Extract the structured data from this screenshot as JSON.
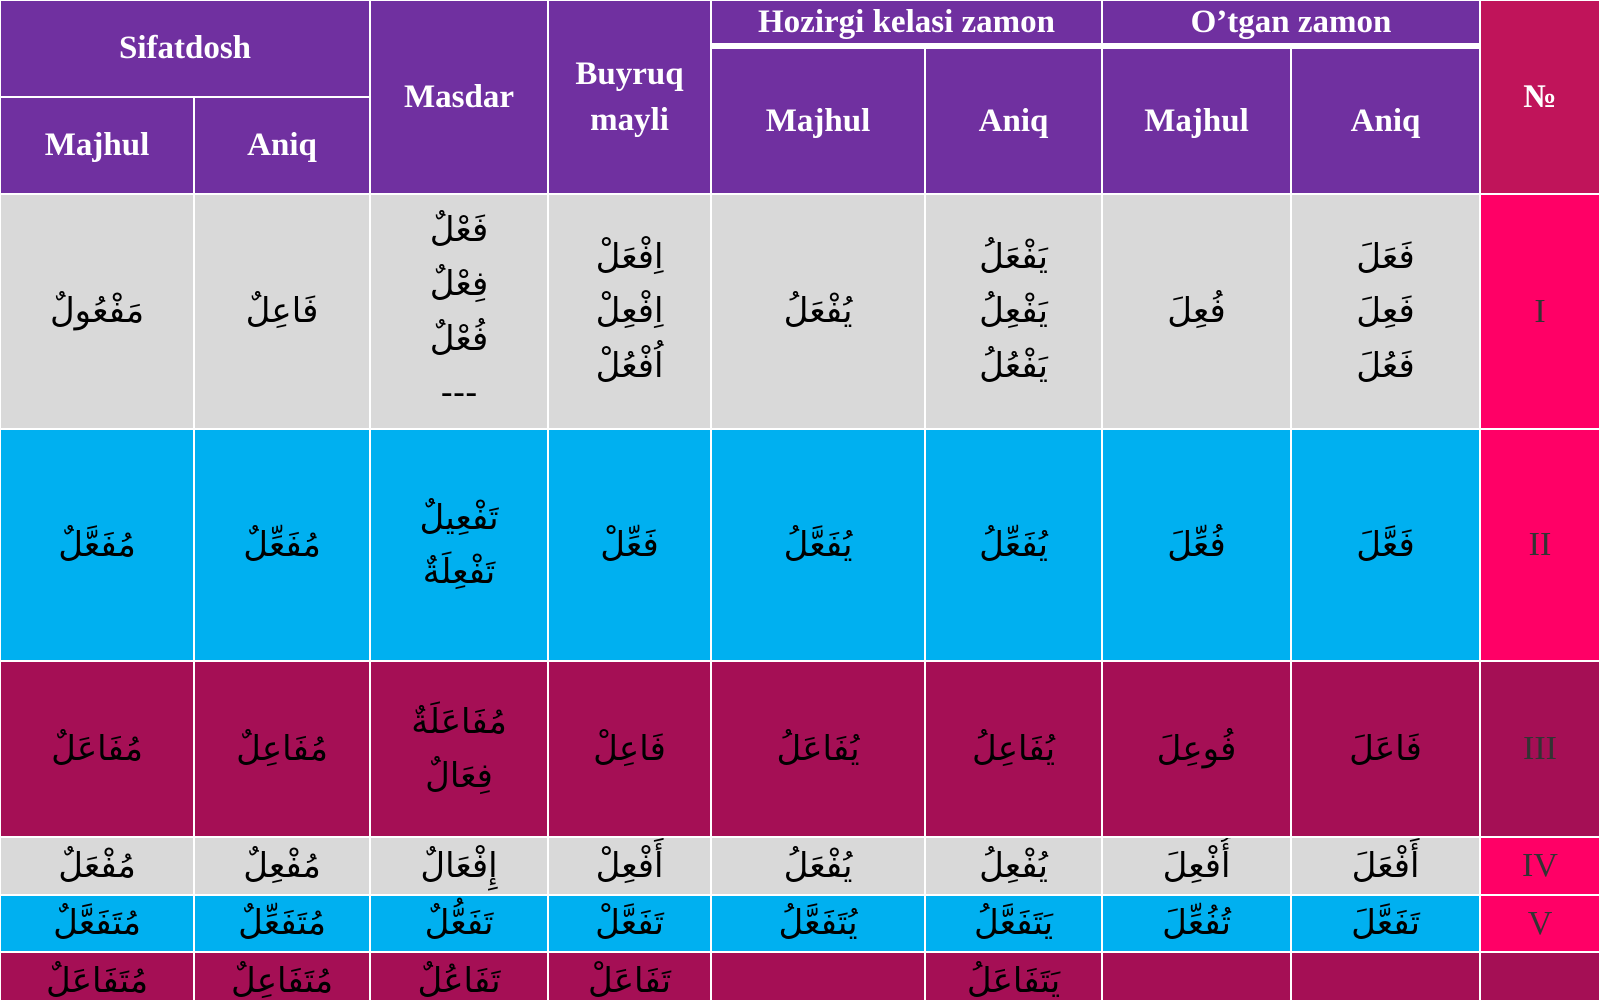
{
  "header": {
    "sifatdosh": "Sifatdosh",
    "masdar": "Masdar",
    "buyruq": "Buyruq mayli",
    "hozirgi": "Hozirgi kelasi zamon",
    "otgan": "O’tgan zamon",
    "number": "№",
    "sub": [
      "Majhul",
      "Aniq",
      "Majhul",
      "Aniq",
      "Majhul",
      "Aniq"
    ]
  },
  "rows": [
    {
      "cells": [
        "مَفْعُولٌ",
        "فَاعِلٌ",
        [
          "فَعْلٌ",
          "فِعْلٌ",
          "فُعْلٌ",
          "---"
        ],
        [
          "اِفْعَلْ",
          "اِفْعِلْ",
          "اُفْعُلْ"
        ],
        "يُفْعَلُ",
        [
          "يَفْعَلُ",
          "يَفْعِلُ",
          "يَفْعُلُ"
        ],
        "فُعِلَ",
        [
          "فَعَلَ",
          "فَعِلَ",
          "فَعُلَ"
        ]
      ],
      "number": "I"
    },
    {
      "cells": [
        "مُفَعَّلٌ",
        "مُفَعِّلٌ",
        [
          "تَفْعِيلٌ",
          "تَفْعِلَةٌ"
        ],
        "فَعِّلْ",
        "يُفَعَّلُ",
        "يُفَعِّلُ",
        "فُعِّلَ",
        "فَعَّلَ"
      ],
      "number": "II"
    },
    {
      "cells": [
        "مُفَاعَلٌ",
        "مُفَاعِلٌ",
        [
          "مُفَاعَلَةٌ",
          "فِعَالٌ"
        ],
        "فَاعِلْ",
        "يُفَاعَلُ",
        "يُفَاعِلُ",
        "فُوعِلَ",
        "فَاعَلَ"
      ],
      "number": "III"
    },
    {
      "cells": [
        "مُفْعَلٌ",
        "مُفْعِلٌ",
        "إِفْعَالٌ",
        "أَفْعِلْ",
        "يُفْعَلُ",
        "يُفْعِلُ",
        "أُفْعِلَ",
        "أَفْعَلَ"
      ],
      "number": "IV"
    },
    {
      "cells": [
        "مُتَفَعَّلٌ",
        "مُتَفَعِّلٌ",
        "تَفَعُّلٌ",
        "تَفَعَّلْ",
        "يُتَفَعَّلُ",
        "يَتَفَعَّلُ",
        "تُفُعِّلَ",
        "تَفَعَّلَ"
      ],
      "number": "V"
    },
    {
      "cells": [
        "مُتَفَاعَلٌ",
        "مُتَفَاعِلٌ",
        "تَفَاعُلٌ",
        "تَفَاعَلْ",
        null,
        "يَتَفَاعَلُ",
        null,
        null
      ],
      "number": null
    }
  ]
}
